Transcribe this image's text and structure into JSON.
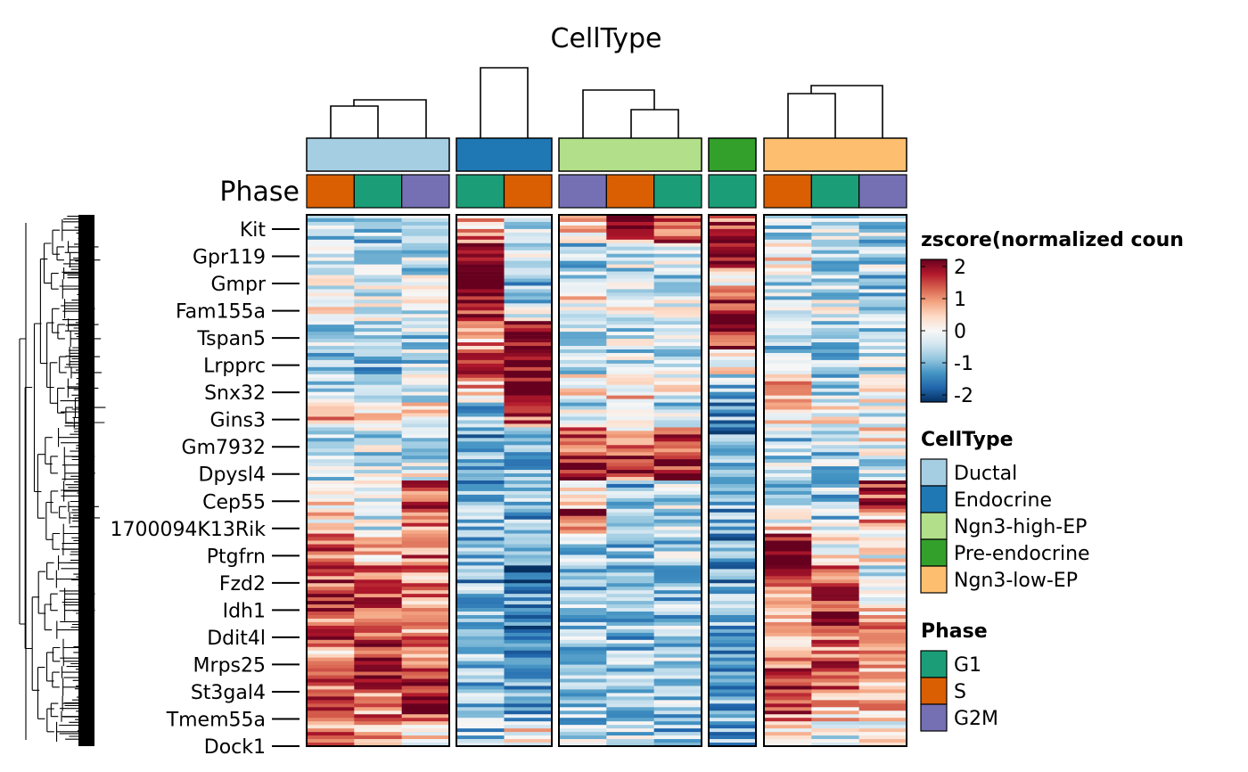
{
  "chart_data": {
    "type": "heatmap",
    "title": "CellType",
    "annotation_row_label": "Phase",
    "column_groups": [
      {
        "celltype": "Ductal",
        "phases": [
          "S",
          "G1",
          "G2M"
        ]
      },
      {
        "celltype": "Endocrine",
        "phases": [
          "G1",
          "S"
        ]
      },
      {
        "celltype": "Ngn3-high-EP",
        "phases": [
          "G2M",
          "S",
          "G1"
        ]
      },
      {
        "celltype": "Pre-endocrine",
        "phases": [
          "G1"
        ]
      },
      {
        "celltype": "Ngn3-low-EP",
        "phases": [
          "S",
          "G1",
          "G2M"
        ]
      }
    ],
    "gene_labels": [
      "Kit",
      "Gpr119",
      "Gmpr",
      "Fam155a",
      "Tspan5",
      "Lrpprc",
      "Snx32",
      "Gins3",
      "Gm7932",
      "Dpysl4",
      "Cep55",
      "1700094K13Rik",
      "Ptgfrn",
      "Fzd2",
      "Idh1",
      "Ddit4l",
      "Mrps25",
      "St3gal4",
      "Tmem55a",
      "Dock1"
    ],
    "value_profile": {
      "description_rows": "approximate mean z-score per gene band (rows) for each of 12 columns",
      "bands": [
        [
          -0.8,
          -0.7,
          -0.8,
          0.6,
          -0.7,
          0.6,
          1.6,
          1.7,
          1.2,
          -0.6,
          -0.5,
          -0.6
        ],
        [
          -0.4,
          -0.4,
          -0.4,
          2.0,
          -0.4,
          -0.6,
          -0.3,
          -0.2,
          2.0,
          0.2,
          -0.6,
          -0.4
        ],
        [
          -0.2,
          -0.3,
          -0.4,
          2.0,
          -1.0,
          -0.6,
          -0.6,
          -0.5,
          0.2,
          -0.3,
          -0.6,
          -0.6
        ],
        [
          0.1,
          -0.3,
          -0.3,
          2.0,
          -0.9,
          0.3,
          -0.2,
          -0.3,
          1.5,
          -0.4,
          -0.3,
          -0.5
        ],
        [
          -0.6,
          -0.6,
          -0.5,
          0.4,
          2.0,
          -0.2,
          -0.4,
          -0.4,
          2.0,
          -0.6,
          -0.6,
          -0.7
        ],
        [
          -0.9,
          -0.8,
          -0.6,
          2.0,
          2.0,
          -0.7,
          -0.5,
          -0.5,
          0.5,
          -0.5,
          -0.6,
          -0.7
        ],
        [
          -0.6,
          -0.7,
          -0.4,
          1.0,
          2.0,
          0.3,
          0.5,
          0.2,
          -0.6,
          0.6,
          -0.7,
          0.4
        ],
        [
          0.8,
          0.2,
          0.3,
          -0.8,
          1.8,
          -0.4,
          -0.2,
          -0.8,
          -1.0,
          0.4,
          0.3,
          -0.4
        ],
        [
          -0.3,
          -0.4,
          -0.3,
          -1.1,
          -1.3,
          1.0,
          0.5,
          1.1,
          -1.2,
          -0.6,
          -0.5,
          0.2
        ],
        [
          -0.5,
          -0.4,
          -0.5,
          -1.0,
          -0.8,
          2.0,
          2.0,
          2.0,
          -0.5,
          -0.5,
          -0.6,
          -0.6
        ],
        [
          0.1,
          -0.4,
          1.5,
          -0.9,
          -0.8,
          0.1,
          -0.8,
          -0.5,
          -0.7,
          -0.5,
          -0.7,
          1.6
        ],
        [
          0.3,
          -0.3,
          1.1,
          -0.7,
          -0.9,
          1.8,
          -0.8,
          -0.5,
          -1.0,
          -0.3,
          -0.6,
          0.8
        ],
        [
          1.0,
          0.3,
          1.2,
          -0.9,
          -1.2,
          -0.7,
          -0.8,
          -0.6,
          -1.1,
          2.0,
          -0.1,
          0.1
        ],
        [
          1.2,
          1.0,
          0.9,
          -1.0,
          -1.3,
          -0.9,
          -0.9,
          -0.6,
          -1.2,
          1.5,
          0.8,
          -0.2
        ],
        [
          1.5,
          1.3,
          0.8,
          -0.9,
          -1.1,
          -0.7,
          -0.8,
          -0.7,
          -1.0,
          0.7,
          1.6,
          0.2
        ],
        [
          1.3,
          1.4,
          1.0,
          -0.9,
          -1.2,
          -0.7,
          -0.8,
          -0.7,
          -1.0,
          0.3,
          1.4,
          0.8
        ],
        [
          0.8,
          1.6,
          0.9,
          -0.8,
          -1.2,
          -0.6,
          -0.7,
          -0.6,
          -1.1,
          0.9,
          1.0,
          1.3
        ],
        [
          1.0,
          1.8,
          1.2,
          -0.7,
          -1.1,
          -0.6,
          -0.7,
          -0.5,
          -1.0,
          1.5,
          1.5,
          0.9
        ],
        [
          1.6,
          1.0,
          1.7,
          -0.9,
          -1.2,
          -0.6,
          -0.7,
          -0.6,
          -1.1,
          1.3,
          0.8,
          0.6
        ],
        [
          0.9,
          0.6,
          0.3,
          -0.7,
          0.3,
          -0.6,
          -0.5,
          -0.8,
          -1.0,
          0.5,
          -0.3,
          -0.1
        ]
      ]
    },
    "colorbar": {
      "title": "zscore(normalized coun",
      "ticks": [
        "2",
        "1",
        "0",
        "-1",
        "-2"
      ],
      "range": [
        -2,
        2
      ],
      "colors": [
        "#053061",
        "#2166ac",
        "#4393c3",
        "#92c5de",
        "#d1e5f0",
        "#f7f7f7",
        "#fddbc7",
        "#f4a582",
        "#d6604d",
        "#b2182b",
        "#67001f"
      ]
    },
    "celltype_legend": {
      "title": "CellType",
      "items": [
        {
          "label": "Ductal",
          "color": "#a6cee3"
        },
        {
          "label": "Endocrine",
          "color": "#1f78b4"
        },
        {
          "label": "Ngn3-high-EP",
          "color": "#b2df8a"
        },
        {
          "label": "Pre-endocrine",
          "color": "#33a02c"
        },
        {
          "label": "Ngn3-low-EP",
          "color": "#fdbf6f"
        }
      ]
    },
    "phase_legend": {
      "title": "Phase",
      "items": [
        {
          "label": "G1",
          "color": "#1b9e77"
        },
        {
          "label": "S",
          "color": "#d95f02"
        },
        {
          "label": "G2M",
          "color": "#7570b3"
        }
      ]
    },
    "row_dendrogram": true,
    "column_dendrograms": true
  }
}
